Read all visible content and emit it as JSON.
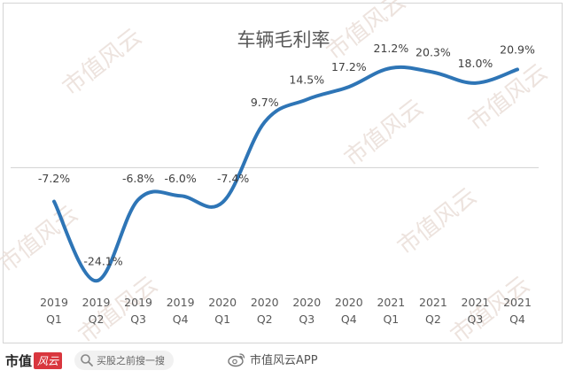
{
  "chart_data": {
    "type": "line",
    "title": "车辆毛利率",
    "categories": [
      "2019\nQ1",
      "2019\nQ2",
      "2019\nQ3",
      "2019\nQ4",
      "2020\nQ1",
      "2020\nQ2",
      "2020\nQ3",
      "2020\nQ4",
      "2021\nQ1",
      "2021\nQ2",
      "2021\nQ3",
      "2021\nQ4"
    ],
    "values": [
      -7.2,
      -24.1,
      -6.8,
      -6.0,
      -7.4,
      9.7,
      14.5,
      17.2,
      21.2,
      20.3,
      18.0,
      20.9
    ],
    "data_labels": [
      "-7.2%",
      "-24.1%",
      "-6.8%",
      "-6.0%",
      "-7.4%",
      "9.7%",
      "14.5%",
      "17.2%",
      "21.2%",
      "20.3%",
      "18.0%",
      "20.9%"
    ],
    "ylim": [
      -28,
      24
    ],
    "grid": false,
    "legend": "none",
    "line_color": "#2e75b6"
  },
  "watermark": "市值风云",
  "footer": {
    "brand": "市值",
    "brand_mark": "风云",
    "search_text": "买股之前搜一搜",
    "weibo_text": "市值风云APP"
  }
}
